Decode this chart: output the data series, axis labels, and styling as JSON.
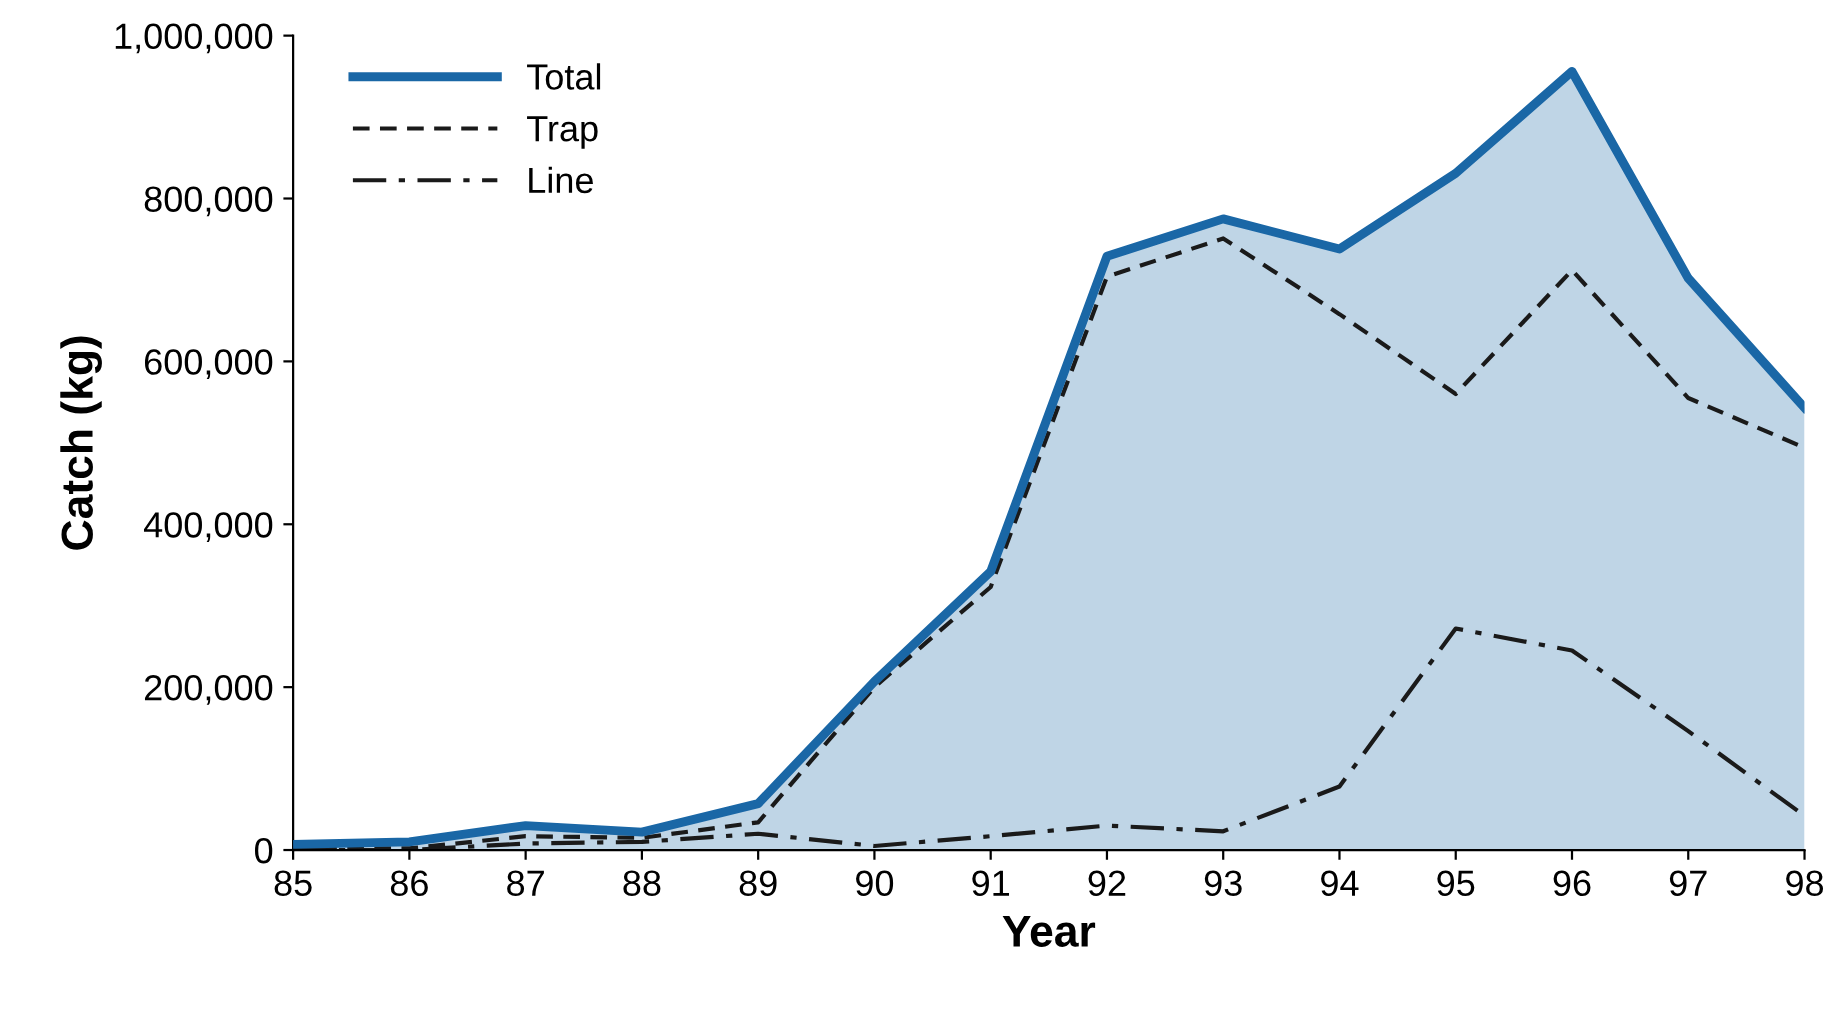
{
  "chart_data": {
    "type": "line",
    "xlabel": "Year",
    "ylabel": "Catch (kg)",
    "x": [
      85,
      86,
      87,
      88,
      89,
      90,
      91,
      92,
      93,
      94,
      95,
      96,
      97,
      98
    ],
    "series": [
      {
        "name": "Total",
        "type": "area",
        "color": "#1a67a6",
        "line_style": "solid",
        "values": [
          7000,
          10000,
          30000,
          22000,
          57000,
          207000,
          342000,
          729000,
          775000,
          738000,
          831000,
          956000,
          702000,
          543000
        ]
      },
      {
        "name": "Trap",
        "color": "#1a1a1a",
        "line_style": "dashed",
        "values": [
          2000,
          2000,
          17000,
          15000,
          34000,
          200000,
          323000,
          704000,
          751000,
          658000,
          560000,
          712000,
          555000,
          494000
        ]
      },
      {
        "name": "Line",
        "color": "#1a1a1a",
        "line_style": "dashdot",
        "values": [
          0,
          0,
          8000,
          10000,
          20000,
          5000,
          17000,
          30000,
          23000,
          78000,
          272000,
          245000,
          146000,
          42000
        ]
      }
    ],
    "xlim": [
      85,
      98
    ],
    "xticks": [
      85,
      86,
      87,
      88,
      89,
      90,
      91,
      92,
      93,
      94,
      95,
      96,
      97,
      98
    ],
    "ylim": [
      0,
      1000000
    ],
    "yticks": [
      0,
      {
        "value": 200000,
        "label": "200,000"
      },
      {
        "value": 400000,
        "label": "400,000"
      },
      {
        "value": 600000,
        "label": "600,000"
      },
      {
        "value": 800000,
        "label": "800,000"
      },
      {
        "value": 1000000,
        "label": "1,000,000"
      }
    ],
    "grid": false,
    "legend": "top left",
    "marker": "none"
  }
}
